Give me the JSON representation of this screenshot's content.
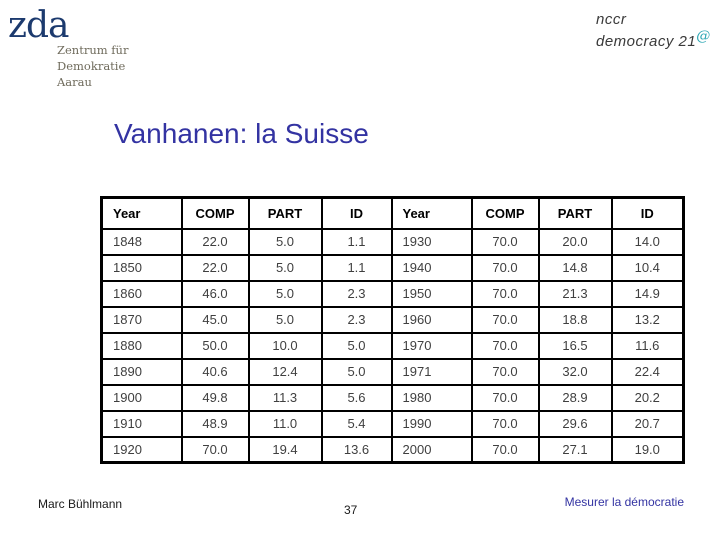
{
  "logos": {
    "zda": {
      "wordmark": "zda",
      "tagline_lines": [
        "Zentrum für",
        "Demokratie",
        "Aarau"
      ]
    },
    "nccr": {
      "line1": "nccr",
      "line2": "democracy 21",
      "at_symbol": "@"
    }
  },
  "title": "Vanhanen: la Suisse",
  "table": {
    "headers": [
      "Year",
      "COMP",
      "PART",
      "ID",
      "Year",
      "COMP",
      "PART",
      "ID"
    ],
    "rows": [
      [
        "1848",
        "22.0",
        "5.0",
        "1.1",
        "1930",
        "70.0",
        "20.0",
        "14.0"
      ],
      [
        "1850",
        "22.0",
        "5.0",
        "1.1",
        "1940",
        "70.0",
        "14.8",
        "10.4"
      ],
      [
        "1860",
        "46.0",
        "5.0",
        "2.3",
        "1950",
        "70.0",
        "21.3",
        "14.9"
      ],
      [
        "1870",
        "45.0",
        "5.0",
        "2.3",
        "1960",
        "70.0",
        "18.8",
        "13.2"
      ],
      [
        "1880",
        "50.0",
        "10.0",
        "5.0",
        "1970",
        "70.0",
        "16.5",
        "11.6"
      ],
      [
        "1890",
        "40.6",
        "12.4",
        "5.0",
        "1971",
        "70.0",
        "32.0",
        "22.4"
      ],
      [
        "1900",
        "49.8",
        "11.3",
        "5.6",
        "1980",
        "70.0",
        "28.9",
        "20.2"
      ],
      [
        "1910",
        "48.9",
        "11.0",
        "5.4",
        "1990",
        "70.0",
        "29.6",
        "20.7"
      ],
      [
        "1920",
        "70.0",
        "19.4",
        "13.6",
        "2000",
        "70.0",
        "27.1",
        "19.0"
      ]
    ]
  },
  "footer": {
    "author": "Marc Bühlmann",
    "page_number": "37",
    "right_text": "Mesurer la démocratie"
  },
  "colors": {
    "title": "#3333a2",
    "footer_right": "#3333a2",
    "zda_wordmark": "#1c3a6e",
    "zda_tagline": "#6f6b5c",
    "nccr_text": "#3a3a3a",
    "nccr_at": "#29a5b3",
    "table_border": "#000000"
  }
}
